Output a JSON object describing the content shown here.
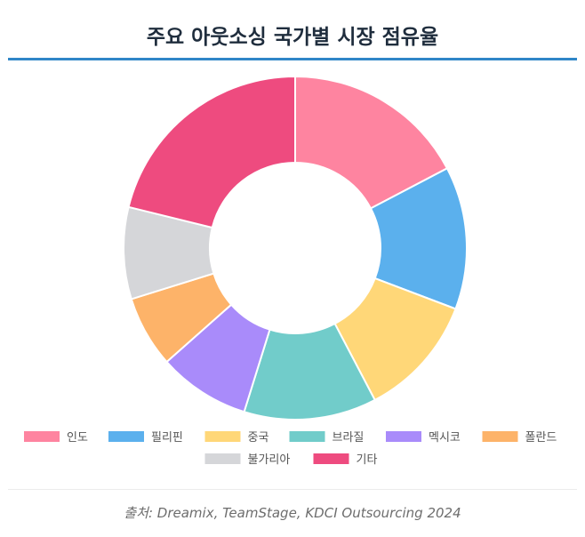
{
  "title": "주요 아웃소싱 국가별 시장 점유율",
  "source": "출처: Dreamix, TeamStage, KDCI Outsourcing 2024",
  "chart_data": {
    "type": "pie",
    "donut": true,
    "categories": [
      "인도",
      "필리핀",
      "중국",
      "브라질",
      "멕시코",
      "폴란드",
      "불가리아",
      "기타"
    ],
    "values": [
      18,
      14,
      12,
      13,
      9,
      7,
      9,
      22
    ],
    "colors": [
      "#fe84a0",
      "#5bb0ed",
      "#ffd778",
      "#71ccca",
      "#a98bfa",
      "#fdb369",
      "#d5d6d9",
      "#ee4b7f"
    ],
    "legend": "bottom"
  }
}
